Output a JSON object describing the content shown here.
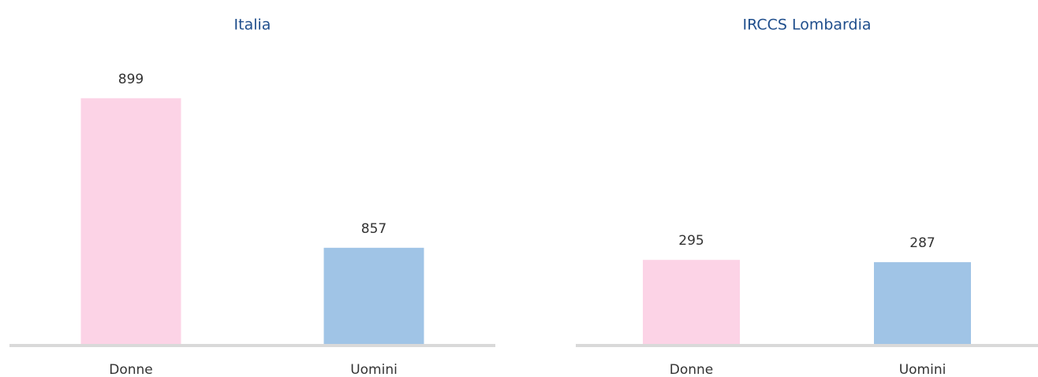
{
  "chart_data": [
    {
      "type": "bar",
      "title": "Italia",
      "categories": [
        "Donne",
        "Uomini"
      ],
      "values": [
        899,
        857
      ],
      "colors": [
        "#fcd3e6",
        "#a0c4e6"
      ],
      "ylim": [
        830,
        910
      ]
    },
    {
      "type": "bar",
      "title": "IRCCS Lombardia",
      "categories": [
        "Donne",
        "Uomini"
      ],
      "values": [
        295,
        287
      ],
      "colors": [
        "#fcd3e6",
        "#a0c4e6"
      ],
      "ylim": [
        0,
        1000
      ]
    }
  ]
}
